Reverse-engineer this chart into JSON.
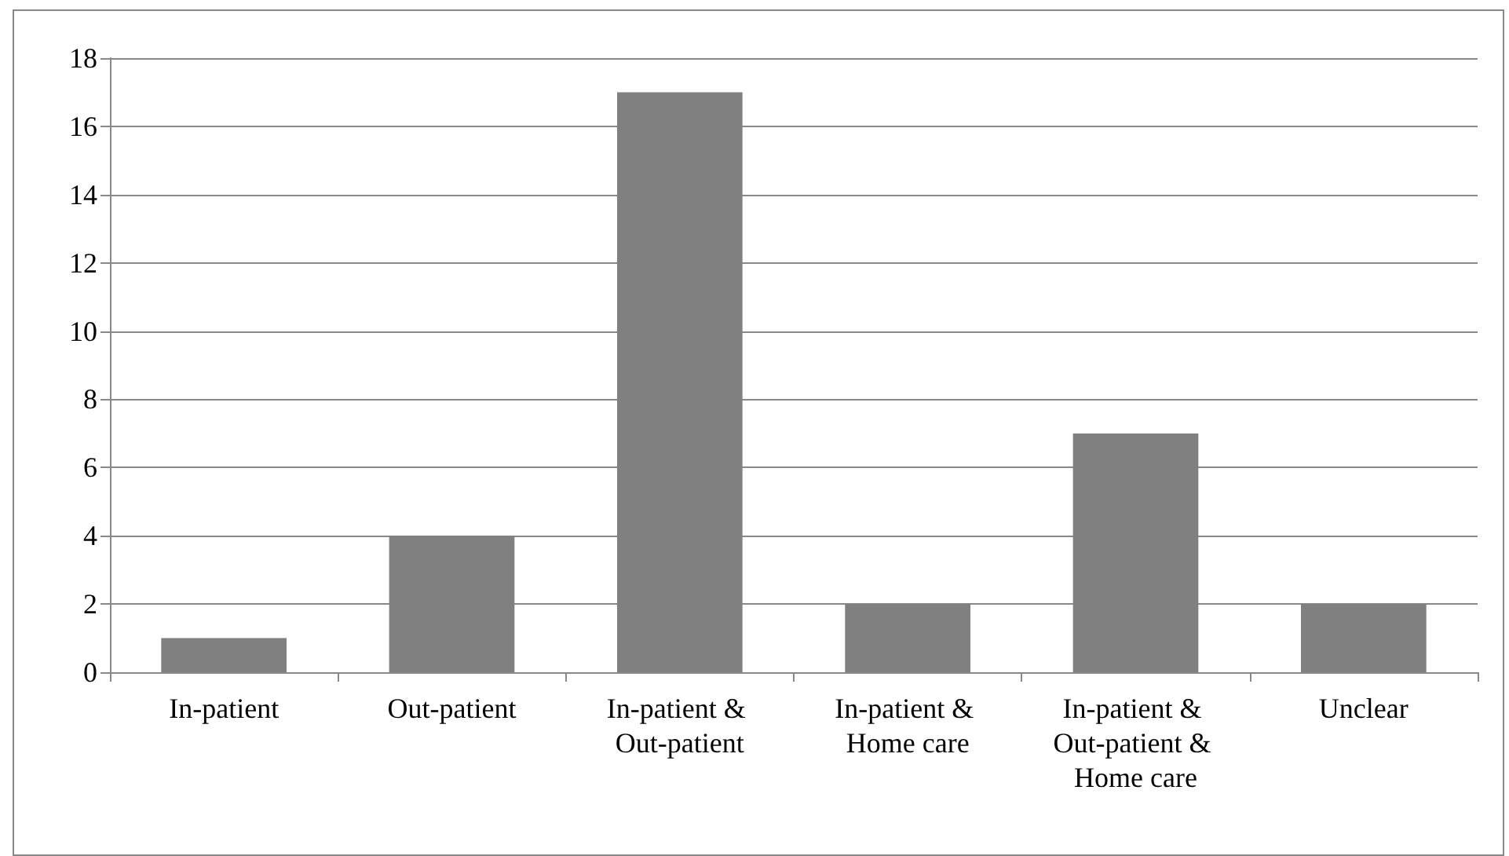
{
  "chart_data": {
    "type": "bar",
    "categories": [
      "In-patient",
      "Out-patient",
      "In-patient & Out-patient",
      "In-patient & Home care",
      "In-patient & Out-patient & Home care",
      "Unclear"
    ],
    "values": [
      1,
      4,
      17,
      2,
      7,
      2
    ],
    "color": "#808080",
    "ylim": [
      0,
      18
    ],
    "yticks": [
      0,
      2,
      4,
      6,
      8,
      10,
      12,
      14,
      16,
      18
    ],
    "grid": "y"
  }
}
